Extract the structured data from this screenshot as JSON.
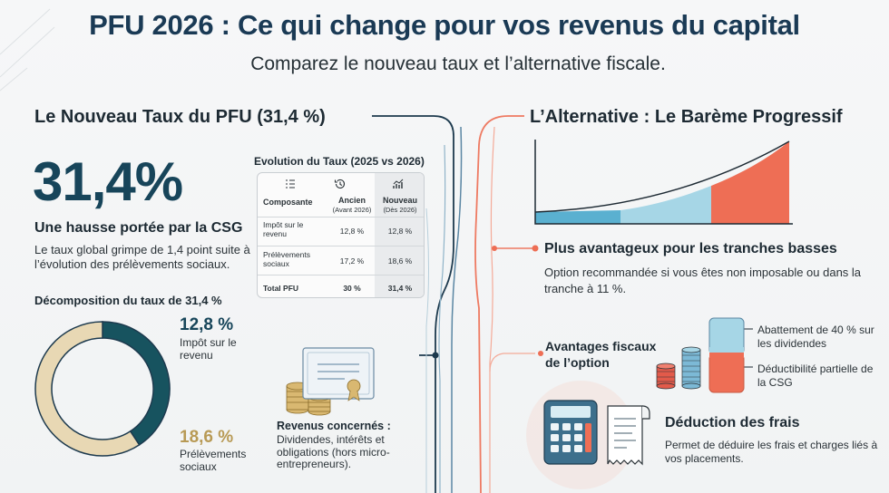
{
  "header": {
    "title": "PFU 2026 : Ce qui change pour vos revenus du capital",
    "subtitle": "Comparez le nouveau taux et l’alternative fiscale."
  },
  "left": {
    "section_title": "Le Nouveau Taux du PFU (31,4 %)",
    "big_rate": "31,4%",
    "hausse_title": "Une hausse portée par la CSG",
    "hausse_desc": "Le taux global grimpe de 1,4 point suite à l’évolution des prélèvements sociaux.",
    "decomposition": {
      "title": "Décomposition du taux de 31,4 %",
      "items": [
        {
          "pct": "12,8 %",
          "label": "Impôt sur le revenu",
          "value": 12.8,
          "color": "#17535f"
        },
        {
          "pct": "18,6 %",
          "label": "Prélèvements sociaux",
          "value": 18.6,
          "color": "#e8d8b4"
        }
      ]
    }
  },
  "table": {
    "title": "Evolution du Taux (2025 vs 2026)",
    "headers": {
      "c1": "Composante",
      "c2": "Ancien",
      "c2_sub": "(Avant 2026)",
      "c3": "Nouveau",
      "c3_sub": "(Dès 2026)"
    },
    "rows": [
      {
        "name": "Impôt sur le revenu",
        "old": "12,8 %",
        "new": "12,8 %"
      },
      {
        "name": "Prélèvements sociaux",
        "old": "17,2 %",
        "new": "18,6 %"
      },
      {
        "name": "Total PFU",
        "old": "30 %",
        "new": "31,4 %"
      }
    ]
  },
  "revenus": {
    "title": "Revenus concernés :",
    "desc": "Dividendes, intérêts et obligations (hors micro-entrepreneurs)."
  },
  "right": {
    "section_title": "L’Alternative : Le Barème Progressif",
    "adv1_title": "Plus avantageux pour les tranches basses",
    "adv1_desc": "Option recommandée si vous êtes non imposable ou dans la tranche à 11 %.",
    "adv2_title": "Avantages fiscaux de l’option",
    "abattement": "Abattement de 40 % sur les dividendes",
    "deductibilite": "Déductibilité partielle de la CSG",
    "frais_title": "Déduction des frais",
    "frais_desc": "Permet de déduire les frais et charges liés à vos placements."
  },
  "colors": {
    "teal_dark": "#17455a",
    "teal": "#17535f",
    "beige": "#e8d8b4",
    "blue": "#5ab0d0",
    "light_blue": "#a6d6e6",
    "coral": "#ee6e55"
  },
  "icons": [
    "list-icon",
    "history-icon",
    "chart-up-icon",
    "coins-icon",
    "certificate-icon",
    "calculator-icon",
    "receipt-icon"
  ]
}
